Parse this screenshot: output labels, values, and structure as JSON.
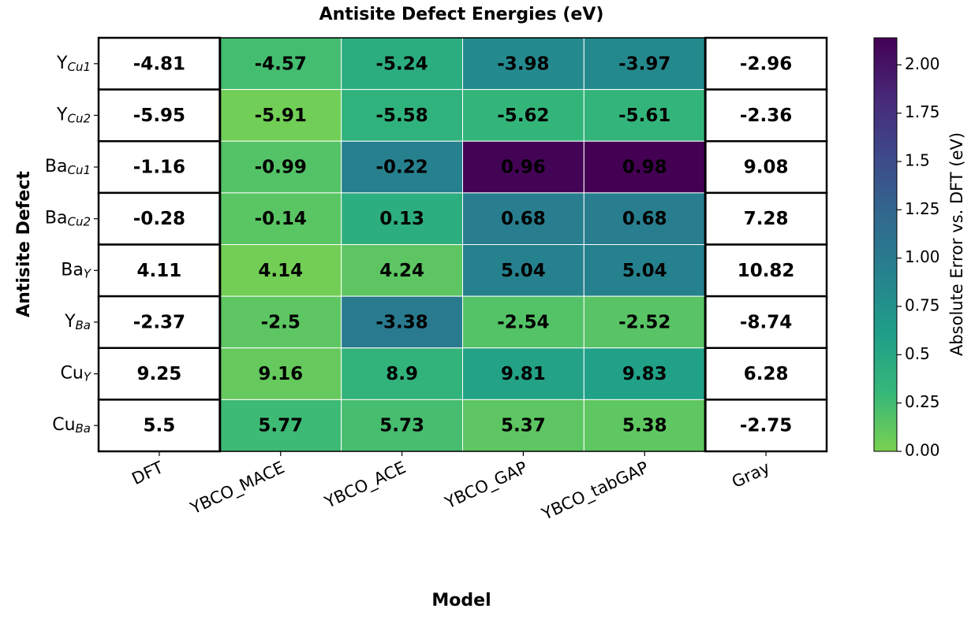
{
  "chart_data": {
    "type": "heatmap",
    "title": "Antisite Defect Energies (eV)",
    "x_label": "Model",
    "y_label": "Antisite Defect",
    "categories": [
      "DFT",
      "YBCO_MACE",
      "YBCO_ACE",
      "YBCO_GAP",
      "YBCO_tabGAP",
      "Gray"
    ],
    "rows": [
      [
        "Y",
        "Cu1"
      ],
      [
        "Y",
        "Cu2"
      ],
      [
        "Ba",
        "Cu1"
      ],
      [
        "Ba",
        "Cu2"
      ],
      [
        "Ba",
        "Y"
      ],
      [
        "Y",
        "Ba"
      ],
      [
        "Cu",
        "Y"
      ],
      [
        "Cu",
        "Ba"
      ]
    ],
    "values": [
      [
        -4.81,
        -4.57,
        -5.24,
        -3.98,
        -3.97,
        -2.96
      ],
      [
        -5.95,
        -5.91,
        -5.58,
        -5.62,
        -5.61,
        -2.36
      ],
      [
        -1.16,
        -0.99,
        -0.22,
        0.96,
        0.98,
        9.08
      ],
      [
        -0.28,
        -0.14,
        0.13,
        0.68,
        0.68,
        7.28
      ],
      [
        4.11,
        4.14,
        4.24,
        5.04,
        5.04,
        10.82
      ],
      [
        -2.37,
        -2.5,
        -3.38,
        -2.54,
        -2.52,
        -8.74
      ],
      [
        9.25,
        9.16,
        8.9,
        9.81,
        9.83,
        6.28
      ],
      [
        5.5,
        5.77,
        5.73,
        5.37,
        5.38,
        -2.75
      ]
    ],
    "reference": "DFT",
    "masked_columns": [
      "DFT",
      "Gray"
    ],
    "colormap": [
      "#7ad151",
      "#35b779",
      "#1f9e89",
      "#26828e",
      "#31688e",
      "#3e4989",
      "#482878",
      "#440154"
    ],
    "colorbar": {
      "label": "Absolute Error vs. DFT (eV)",
      "lim": [
        0,
        2.14
      ],
      "ticks": [
        {
          "value": 0,
          "label": "0.00"
        },
        0.25,
        0.5,
        0.75,
        {
          "value": 1,
          "label": "1.00"
        },
        1.25,
        1.5,
        1.75,
        {
          "value": 2,
          "label": "2.00"
        }
      ]
    }
  }
}
